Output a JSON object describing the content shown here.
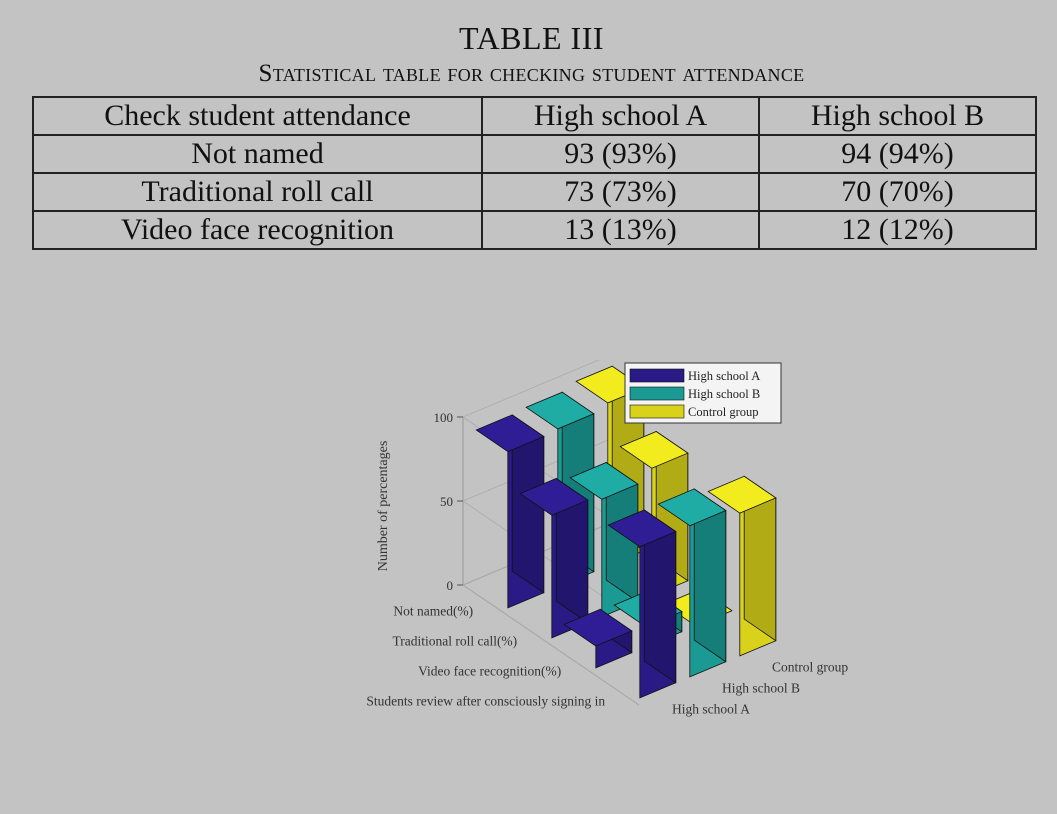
{
  "table": {
    "title": "TABLE III",
    "subtitle": "Statistical table for checking student attendance",
    "headers": [
      "Check student attendance",
      "High school A",
      "High school B"
    ],
    "rows": [
      [
        "Not named",
        "93 (93%)",
        "94 (94%)"
      ],
      [
        "Traditional roll call",
        "73 (73%)",
        "70 (70%)"
      ],
      [
        "Video face recognition",
        "13 (13%)",
        "12 (12%)"
      ]
    ]
  },
  "chart_data": {
    "type": "bar",
    "subtype": "3d-grouped-bar",
    "categories": [
      "Not named(%)",
      "Traditional roll call(%)",
      "Video face recognition(%)",
      "Students review after consciously signing in"
    ],
    "series": [
      {
        "name": "High school A",
        "color": "#2a1a86",
        "values": [
          93,
          73,
          13,
          90
        ]
      },
      {
        "name": "High school B",
        "color": "#1b9a93",
        "values": [
          94,
          70,
          12,
          90
        ]
      },
      {
        "name": "Control group",
        "color": "#d8d21a",
        "values": [
          97,
          76,
          0,
          85
        ]
      }
    ],
    "ylabel": "Number of percentages",
    "xlabel": "",
    "ylim": [
      0,
      100
    ],
    "yticks": [
      0,
      50,
      100
    ],
    "grid": true,
    "legend_position": "top-right"
  }
}
